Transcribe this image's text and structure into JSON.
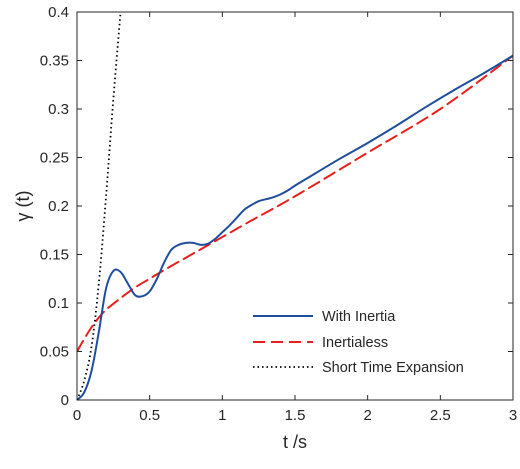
{
  "chart_data": {
    "type": "line",
    "xlabel": "t /s",
    "ylabel": "γ (t)",
    "xlim": [
      0,
      3
    ],
    "ylim": [
      0,
      0.4
    ],
    "xticks": [
      "0",
      "0.5",
      "1",
      "1.5",
      "2",
      "2.5",
      "3"
    ],
    "yticks": [
      "0",
      "0.05",
      "0.1",
      "0.15",
      "0.2",
      "0.25",
      "0.3",
      "0.35",
      "0.4"
    ],
    "grid": false,
    "legend_position": "bottom-right",
    "series": [
      {
        "name": "With Inertia",
        "style": "solid",
        "color": "#1f4e9c",
        "x": [
          0,
          0.05,
          0.1,
          0.15,
          0.2,
          0.25,
          0.3,
          0.35,
          0.4,
          0.45,
          0.5,
          0.55,
          0.6,
          0.65,
          0.7,
          0.75,
          0.8,
          0.85,
          0.9,
          0.95,
          1.0,
          1.05,
          1.1,
          1.15,
          1.2,
          1.25,
          1.3,
          1.35,
          1.4,
          1.45,
          1.5,
          1.6,
          1.8,
          2.0,
          2.2,
          2.4,
          2.6,
          2.8,
          3.0
        ],
        "y": [
          0,
          0.008,
          0.03,
          0.07,
          0.115,
          0.133,
          0.132,
          0.12,
          0.108,
          0.107,
          0.112,
          0.125,
          0.142,
          0.155,
          0.16,
          0.162,
          0.162,
          0.16,
          0.161,
          0.166,
          0.173,
          0.18,
          0.188,
          0.196,
          0.201,
          0.205,
          0.207,
          0.209,
          0.212,
          0.216,
          0.221,
          0.23,
          0.248,
          0.265,
          0.283,
          0.302,
          0.32,
          0.337,
          0.355
        ]
      },
      {
        "name": "Inertialess",
        "style": "dashed",
        "color": "#e8201c",
        "x": [
          0,
          0.05,
          0.1,
          0.15,
          0.2,
          0.3,
          0.4,
          0.5,
          0.6,
          0.8,
          1.0,
          1.2,
          1.5,
          2.0,
          2.5,
          3.0
        ],
        "y": [
          0.05,
          0.063,
          0.075,
          0.085,
          0.093,
          0.105,
          0.116,
          0.125,
          0.134,
          0.151,
          0.168,
          0.185,
          0.21,
          0.255,
          0.3,
          0.355
        ]
      },
      {
        "name": "Short Time Expansion",
        "style": "dotted",
        "color": "#000000",
        "x": [
          0,
          0.05,
          0.1,
          0.15,
          0.2,
          0.25,
          0.3
        ],
        "y": [
          0,
          0.02,
          0.055,
          0.12,
          0.21,
          0.31,
          0.4
        ]
      }
    ]
  }
}
